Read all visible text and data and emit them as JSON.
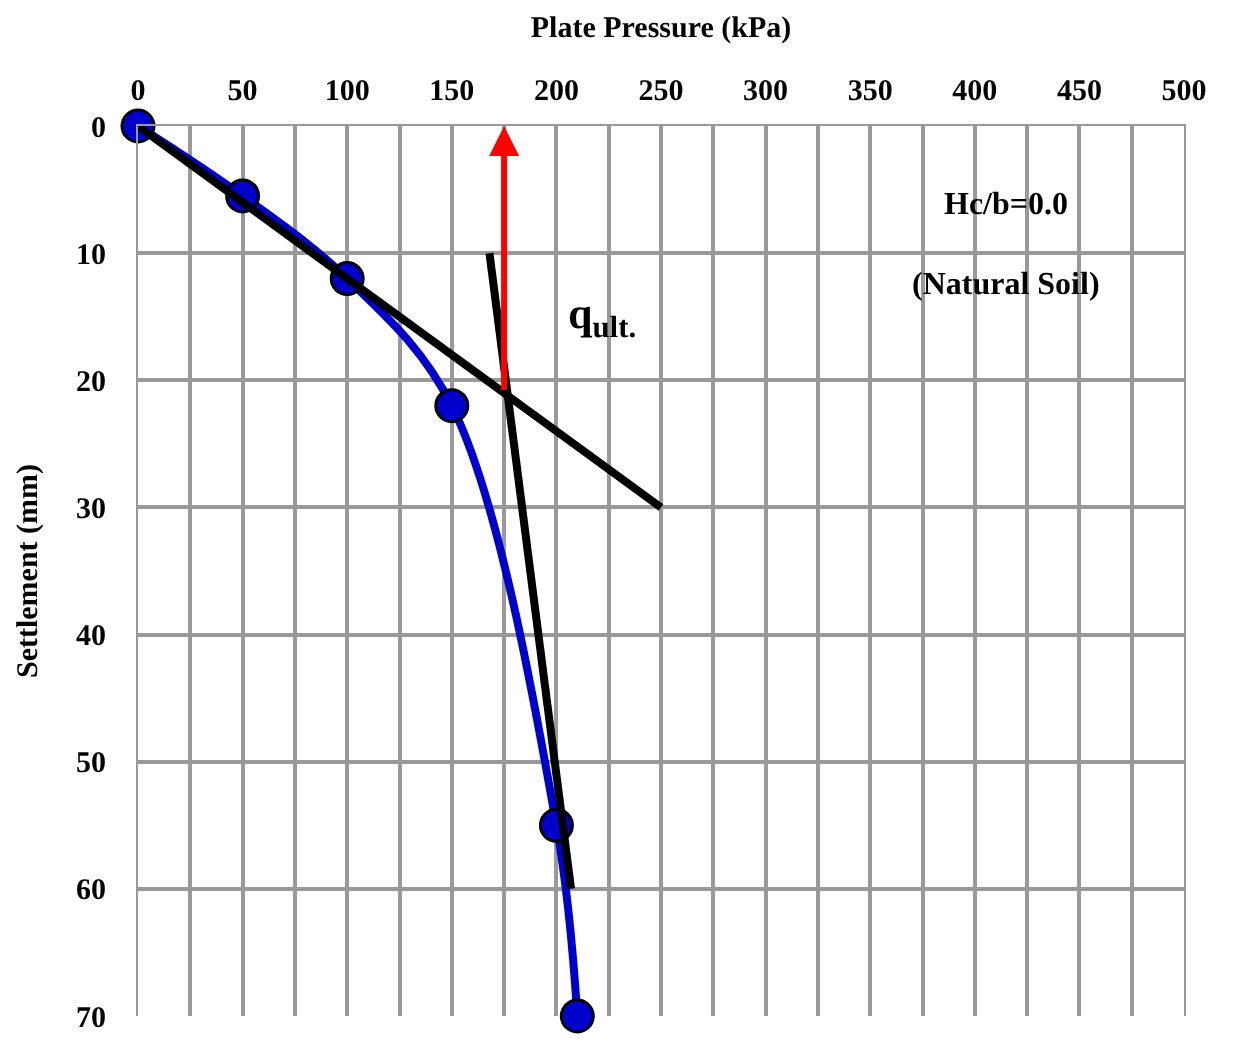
{
  "chart_data": {
    "type": "line",
    "xlabel": "Plate Pressure (kPa)",
    "ylabel": "Settlement (mm)",
    "xlim": [
      0,
      500
    ],
    "xticks": [
      0,
      {
        "value": 25,
        "label": null
      },
      50,
      {
        "value": 75,
        "label": null
      },
      100,
      {
        "value": 125,
        "label": null
      },
      150,
      {
        "value": 175,
        "label": null
      },
      200,
      {
        "value": 225,
        "label": null
      },
      250,
      {
        "value": 275,
        "label": null
      },
      300,
      {
        "value": 325,
        "label": null
      },
      350,
      {
        "value": 375,
        "label": null
      },
      400,
      {
        "value": 425,
        "label": null
      },
      450,
      {
        "value": 475,
        "label": null
      },
      500
    ],
    "ylim": [
      70,
      0
    ],
    "yticks": [
      0,
      10,
      20,
      30,
      40,
      50,
      60,
      70
    ],
    "grid": true,
    "marker": "circle",
    "series": [
      {
        "x": [
          0,
          50,
          100,
          150,
          200,
          210
        ],
        "values": [
          0,
          5.5,
          12,
          22,
          55,
          70
        ],
        "color": "#0000cc"
      },
      {
        "x": [
          0,
          250
        ],
        "values": [
          0,
          30
        ],
        "color": "#000000",
        "marker": "none"
      },
      {
        "x": [
          168,
          207
        ],
        "values": [
          10,
          60
        ],
        "color": "#000000",
        "marker": "none"
      }
    ],
    "annotations": [
      {
        "text": "q$_{ult.}$",
        "x": 175,
        "y": 21
      },
      "Hc/b=0.0",
      "(Natural Soil)"
    ]
  }
}
